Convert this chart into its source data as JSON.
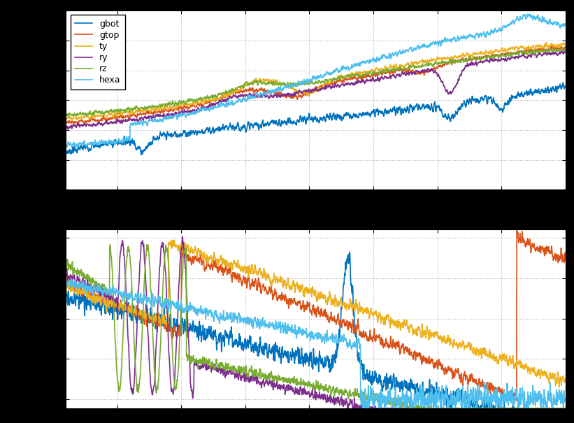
{
  "lines": {
    "gbot": {
      "color": "#0072BD",
      "linewidth": 1.2
    },
    "gtop": {
      "color": "#D95319",
      "linewidth": 1.2
    },
    "ty": {
      "color": "#EDB120",
      "linewidth": 1.2
    },
    "ry": {
      "color": "#7E2F8E",
      "linewidth": 1.2
    },
    "rz": {
      "color": "#77AC30",
      "linewidth": 1.2
    },
    "hexa": {
      "color": "#4DBEEE",
      "linewidth": 1.2
    }
  },
  "legend_labels": [
    "gbot",
    "gtop",
    "ty",
    "ry",
    "rz",
    "hexa"
  ],
  "freq_min": 5,
  "freq_max": 200,
  "amp_ylim": [
    -100,
    20
  ],
  "phase_ylim": [
    -200,
    200
  ],
  "phase_yticks": [
    -180,
    -90,
    0,
    90,
    180
  ],
  "grid_color": "#aaaaaa",
  "grid_linestyle": ":",
  "grid_linewidth": 0.7,
  "fig_facecolor": "#000000",
  "subplot_facecolor": "#ffffff"
}
